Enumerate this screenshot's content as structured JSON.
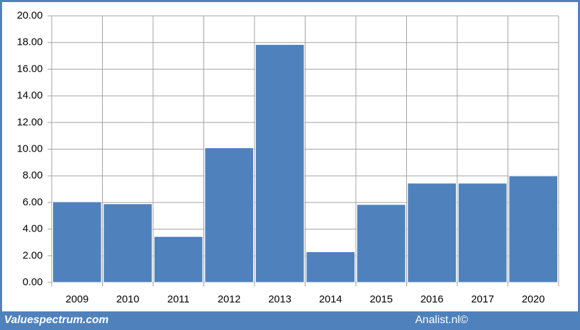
{
  "chart_data": {
    "type": "bar",
    "categories": [
      "2009",
      "2010",
      "2011",
      "2012",
      "2013",
      "2014",
      "2015",
      "2016",
      "2017",
      "2020"
    ],
    "values": [
      6.05,
      5.9,
      3.45,
      10.1,
      17.85,
      2.3,
      5.85,
      7.45,
      7.45,
      8.0
    ],
    "color": "#4f81bd",
    "ylim": [
      0,
      20
    ],
    "yticks": [
      {
        "value": 0,
        "label": "0.00"
      },
      {
        "value": 2,
        "label": "2.00"
      },
      {
        "value": 4,
        "label": "4.00"
      },
      {
        "value": 6,
        "label": "6.00"
      },
      {
        "value": 8,
        "label": "8.00"
      },
      {
        "value": 10,
        "label": "10.00"
      },
      {
        "value": 12,
        "label": "12.00"
      },
      {
        "value": 14,
        "label": "14.00"
      },
      {
        "value": 16,
        "label": "16.00"
      },
      {
        "value": 18,
        "label": "18.00"
      },
      {
        "value": 20,
        "label": "20.00"
      }
    ],
    "grid": true
  },
  "footer": {
    "left": "Valuespectrum.com",
    "right": "Analist.nl©"
  }
}
